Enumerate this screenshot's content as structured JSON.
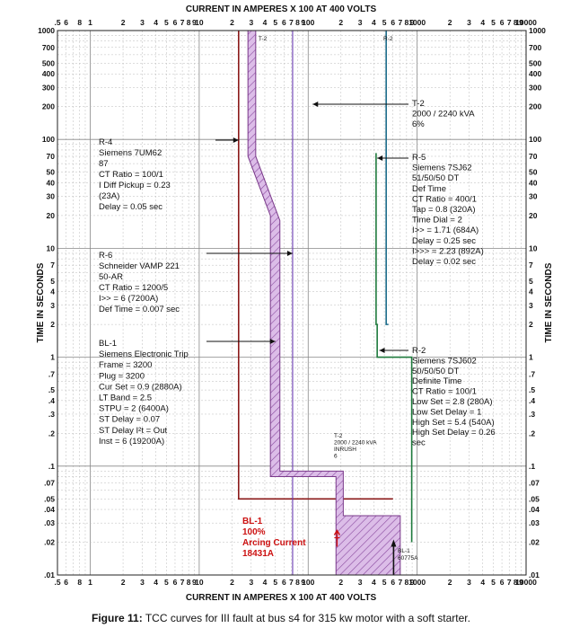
{
  "chart_data": {
    "type": "line",
    "title_top": "CURRENT IN AMPERES X 100 AT 400 VOLTS",
    "title_bottom": "CURRENT IN AMPERES X 100 AT 400 VOLTS",
    "ylabel": "TIME IN SECONDS",
    "x_scale": "log",
    "y_scale": "log",
    "xlim": [
      0.5,
      10000
    ],
    "ylim": [
      0.01,
      1000
    ],
    "x_tick_labels": [
      {
        "v": 0.5,
        "t": ".5"
      },
      {
        "v": 0.6,
        "t": "6"
      },
      {
        "v": 0.8,
        "t": "8"
      },
      {
        "v": 1,
        "t": "1"
      },
      {
        "v": 2,
        "t": "2"
      },
      {
        "v": 3,
        "t": "3"
      },
      {
        "v": 4,
        "t": "4"
      },
      {
        "v": 5,
        "t": "5"
      },
      {
        "v": 6,
        "t": "6"
      },
      {
        "v": 7,
        "t": "7"
      },
      {
        "v": 8,
        "t": "8"
      },
      {
        "v": 9,
        "t": "9"
      },
      {
        "v": 10,
        "t": "10"
      },
      {
        "v": 20,
        "t": "2"
      },
      {
        "v": 30,
        "t": "3"
      },
      {
        "v": 40,
        "t": "4"
      },
      {
        "v": 50,
        "t": "5"
      },
      {
        "v": 60,
        "t": "6"
      },
      {
        "v": 70,
        "t": "7"
      },
      {
        "v": 80,
        "t": "8"
      },
      {
        "v": 90,
        "t": "9"
      },
      {
        "v": 100,
        "t": "100"
      },
      {
        "v": 200,
        "t": "2"
      },
      {
        "v": 300,
        "t": "3"
      },
      {
        "v": 400,
        "t": "4"
      },
      {
        "v": 500,
        "t": "5"
      },
      {
        "v": 600,
        "t": "6"
      },
      {
        "v": 700,
        "t": "7"
      },
      {
        "v": 800,
        "t": "8"
      },
      {
        "v": 900,
        "t": "9"
      },
      {
        "v": 1000,
        "t": "1000"
      },
      {
        "v": 2000,
        "t": "2"
      },
      {
        "v": 3000,
        "t": "3"
      },
      {
        "v": 4000,
        "t": "4"
      },
      {
        "v": 5000,
        "t": "5"
      },
      {
        "v": 6000,
        "t": "6"
      },
      {
        "v": 7000,
        "t": "7"
      },
      {
        "v": 8000,
        "t": "8"
      },
      {
        "v": 9000,
        "t": "9"
      },
      {
        "v": 10000,
        "t": "10000"
      }
    ],
    "y_tick_labels": [
      {
        "v": 1000,
        "t": "1000"
      },
      {
        "v": 700,
        "t": "700"
      },
      {
        "v": 500,
        "t": "500"
      },
      {
        "v": 400,
        "t": "400"
      },
      {
        "v": 300,
        "t": "300"
      },
      {
        "v": 200,
        "t": "200"
      },
      {
        "v": 100,
        "t": "100"
      },
      {
        "v": 70,
        "t": "70"
      },
      {
        "v": 50,
        "t": "50"
      },
      {
        "v": 40,
        "t": "40"
      },
      {
        "v": 30,
        "t": "30"
      },
      {
        "v": 20,
        "t": "20"
      },
      {
        "v": 10,
        "t": "10"
      },
      {
        "v": 7,
        "t": "7"
      },
      {
        "v": 5,
        "t": "5"
      },
      {
        "v": 4,
        "t": "4"
      },
      {
        "v": 3,
        "t": "3"
      },
      {
        "v": 2,
        "t": "2"
      },
      {
        "v": 1,
        "t": "1"
      },
      {
        "v": 0.7,
        "t": ".7"
      },
      {
        "v": 0.5,
        "t": ".5"
      },
      {
        "v": 0.4,
        "t": ".4"
      },
      {
        "v": 0.3,
        "t": ".3"
      },
      {
        "v": 0.2,
        "t": ".2"
      },
      {
        "v": 0.1,
        "t": ".1"
      },
      {
        "v": 0.07,
        "t": ".07"
      },
      {
        "v": 0.05,
        "t": ".05"
      },
      {
        "v": 0.04,
        "t": ".04"
      },
      {
        "v": 0.03,
        "t": ".03"
      },
      {
        "v": 0.02,
        "t": ".02"
      },
      {
        "v": 0.01,
        "t": ".01"
      }
    ],
    "series": [
      {
        "name": "R-4",
        "color": "#8b1a1a",
        "type": "step",
        "points": [
          [
            23,
            1000
          ],
          [
            23,
            0.05
          ],
          [
            600,
            0.05
          ]
        ]
      },
      {
        "name": "R-5",
        "color": "#1e7a3c",
        "type": "step",
        "points": [
          [
            420,
            75
          ],
          [
            420,
            2
          ],
          [
            430,
            2
          ],
          [
            430,
            1
          ],
          [
            460,
            1
          ],
          [
            892,
            1
          ],
          [
            892,
            0.02
          ]
        ]
      },
      {
        "name": "R-2",
        "color": "#1a6b8a",
        "type": "step",
        "points": [
          [
            520,
            1000
          ],
          [
            520,
            2
          ],
          [
            545,
            2
          ]
        ]
      },
      {
        "name": "R-6",
        "color": "#6a3ab0",
        "type": "step",
        "points": [
          [
            72,
            1000
          ],
          [
            72,
            0.01
          ]
        ]
      },
      {
        "name": "BL-1",
        "color": "#7a3a8a",
        "type": "band",
        "fill": "#d9b3e6",
        "left": [
          [
            28,
            1000
          ],
          [
            28,
            70
          ],
          [
            45,
            20
          ],
          [
            45,
            0.08
          ],
          [
            180,
            0.08
          ],
          [
            180,
            0.035
          ],
          [
            180,
            0.01
          ]
        ],
        "right": [
          [
            33,
            1000
          ],
          [
            33,
            70
          ],
          [
            55,
            18
          ],
          [
            55,
            0.09
          ],
          [
            210,
            0.09
          ],
          [
            210,
            0.035
          ],
          [
            700,
            0.035
          ],
          [
            700,
            0.01
          ]
        ]
      },
      {
        "name": "BL-1 60775A",
        "color": "#111111",
        "type": "line",
        "points": [
          [
            608,
            0.02
          ],
          [
            608,
            0.01
          ]
        ]
      },
      {
        "name": "T-2 inrush",
        "color": "#cc1111",
        "type": "marker",
        "points": [
          [
            184,
            0.022
          ]
        ]
      }
    ],
    "annotations": {
      "r4": [
        "R-4",
        "Siemens 7UM62",
        "87",
        "CT Ratio = 100/1",
        "I Diff Pickup = 0.23",
        "(23A)",
        "Delay = 0.05 sec"
      ],
      "r6": [
        "R-6",
        "Schneider VAMP 221",
        "50-AR",
        "CT Ratio = 1200/5",
        "I>> = 6 (7200A)",
        "Def Time = 0.007 sec"
      ],
      "bl1": [
        "BL-1",
        "Siemens Electronic Trip",
        "Frame = 3200",
        "Plug = 3200",
        "Cur Set = 0.9 (2880A)",
        "LT Band = 2.5",
        "STPU = 2 (6400A)",
        "ST Delay = 0.07",
        "ST Delay I²t = Out",
        "Inst = 6 (19200A)"
      ],
      "t2": [
        "T-2",
        "2000 / 2240 kVA",
        "6%"
      ],
      "r5": [
        "R-5",
        "Siemens 7SJ62",
        "51/50/50 DT",
        "Def Time",
        "CT Ratio = 400/1",
        "Tap = 0.8 (320A)",
        "Time Dial = 2",
        "I>> = 1.71 (684A)",
        "Delay = 0.25 sec",
        "I>>> = 2.23 (892A)",
        "Delay = 0.02 sec"
      ],
      "r2": [
        "R-2",
        "Siemens 7SJ602",
        "50/50/50 DT",
        "Definite Time",
        "CT Ratio = 100/1",
        "Low Set = 2.8 (280A)",
        "Low Set Delay = 1",
        "High Set = 5.4 (540A)",
        "High Set Delay = 0.26",
        "sec"
      ],
      "inrush": [
        "T-2",
        "2000 / 2240 kVA",
        "INRUSH",
        "6"
      ],
      "arc": [
        "BL-1",
        "100%",
        "Arcing Current",
        "18431A"
      ],
      "bl1_small": [
        "BL-1",
        "60775A"
      ],
      "curve_tags": {
        "t2_top": "T-2",
        "r2_top": "R-2"
      }
    }
  },
  "caption": {
    "label": "Figure 11:",
    "text": "TCC curves for III fault at bus s4 for 315 kw motor with a soft starter."
  }
}
